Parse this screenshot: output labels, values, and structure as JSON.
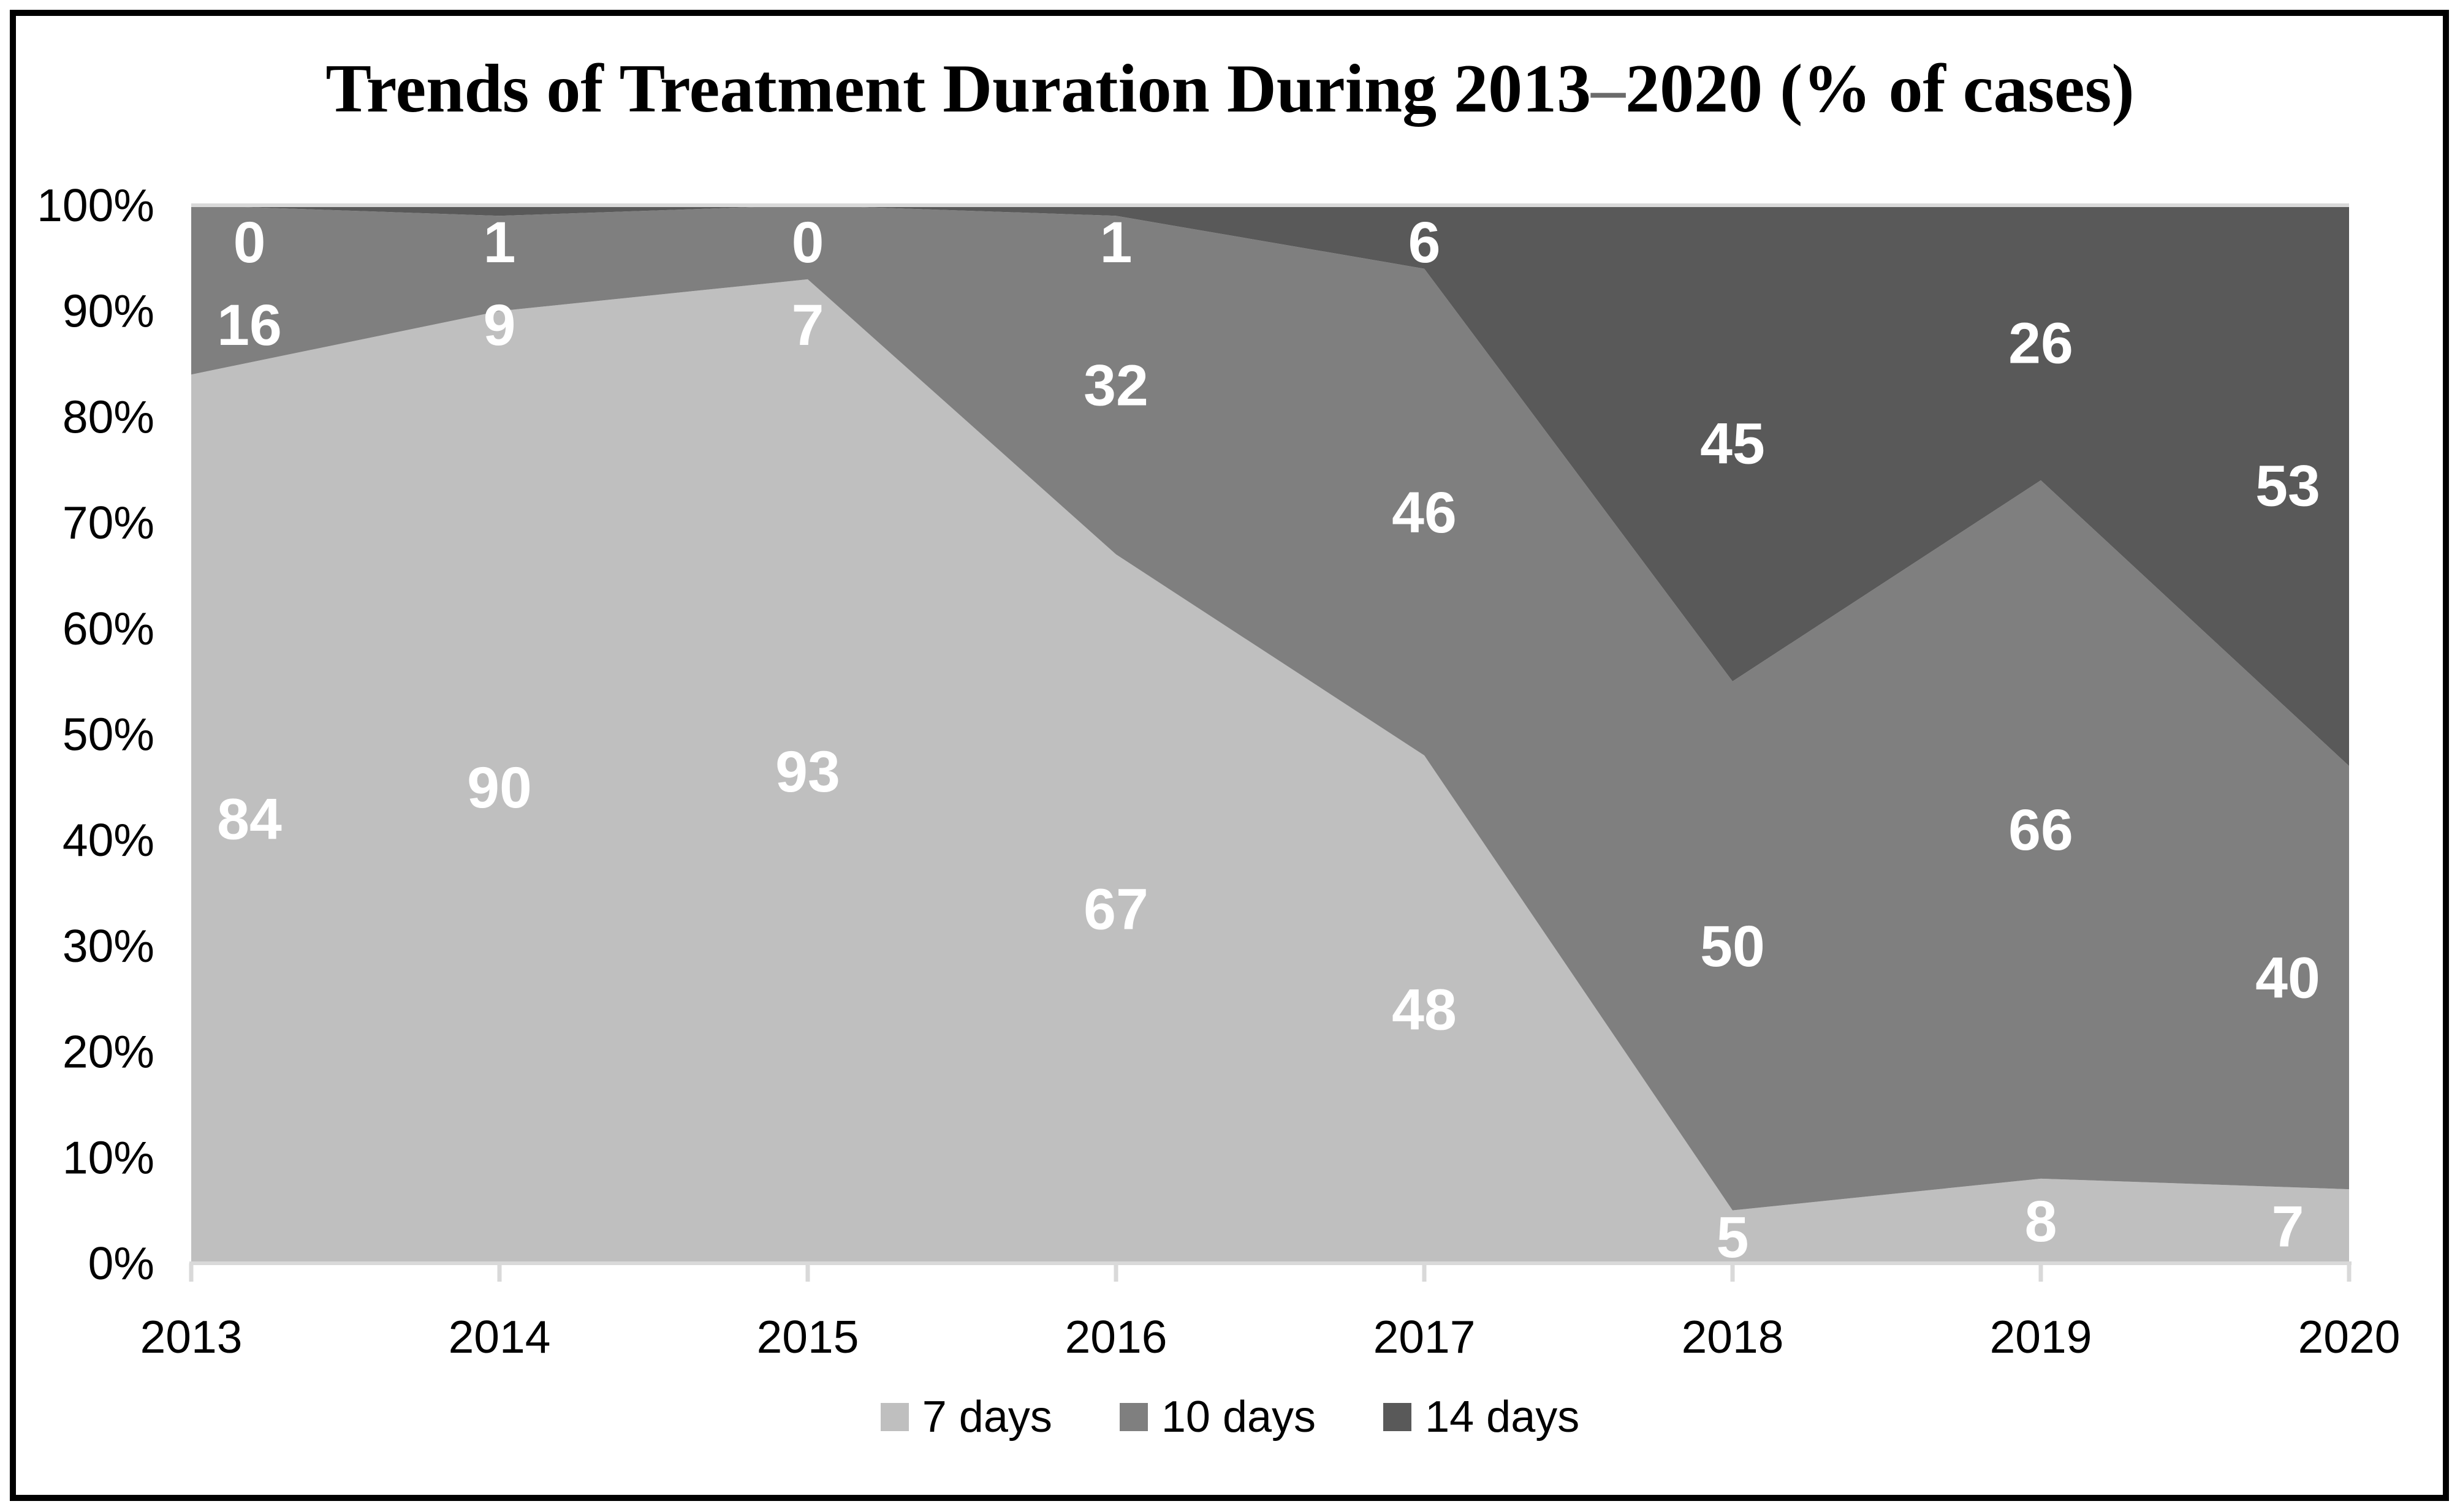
{
  "page": {
    "background": "#ffffff",
    "border_color": "#000000"
  },
  "title": {
    "before": "Trends of Treatment Duration During 2013",
    "dash": "–",
    "after": "2020 (% of cases)"
  },
  "chart_data": {
    "type": "area",
    "stacking": "percent",
    "title": "Trends of Treatment Duration During 2013–2020 (% of cases)",
    "categories": [
      "2013",
      "2014",
      "2015",
      "2016",
      "2017",
      "2018",
      "2019",
      "2020"
    ],
    "series": [
      {
        "name": "7 days",
        "color": "#bfbfbf",
        "values": [
          84,
          90,
          93,
          67,
          48,
          5,
          8,
          7
        ]
      },
      {
        "name": "10 days",
        "color": "#7f7f7f",
        "values": [
          16,
          9,
          7,
          32,
          46,
          50,
          66,
          40
        ]
      },
      {
        "name": "14 days",
        "color": "#595959",
        "values": [
          0,
          1,
          0,
          1,
          6,
          45,
          26,
          53
        ]
      }
    ],
    "ylim": [
      0,
      100
    ],
    "ytick_step": 10,
    "ytick_labels": [
      "0%",
      "10%",
      "20%",
      "30%",
      "40%",
      "50%",
      "60%",
      "70%",
      "80%",
      "90%",
      "100%"
    ],
    "xlabel": "",
    "ylabel": "",
    "grid": false,
    "top_gridline": "100%",
    "legend_position": "bottom",
    "data_labels": true,
    "data_label_color": "#ffffff",
    "axis_line_color": "#d9d9d9",
    "axis_text_color": "#000000",
    "title_color": "#000000",
    "title_dash_color": "#6a6a6a"
  }
}
